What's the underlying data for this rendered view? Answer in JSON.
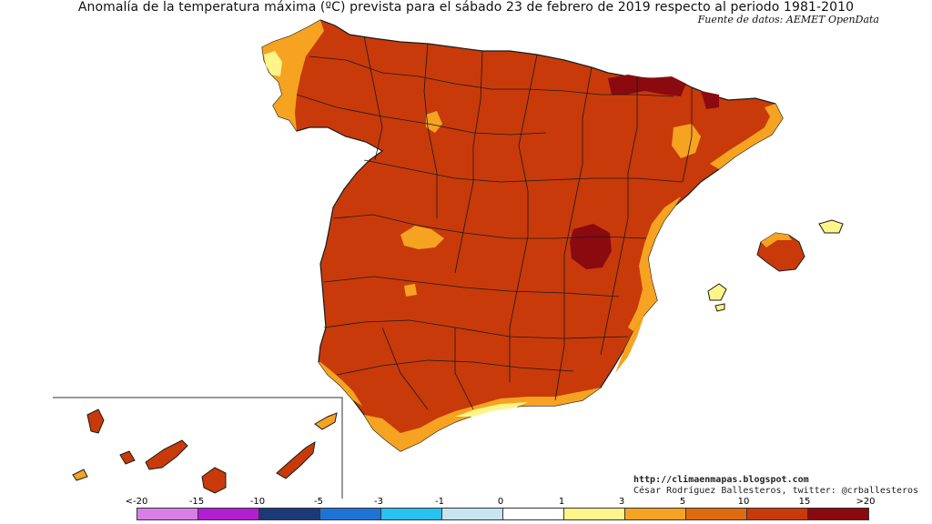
{
  "title": "Anomalía de la temperatura máxima (ºC) prevista para el sábado 23 de febrero de 2019 respecto al periodo 1981-2010",
  "source": "Fuente de datos: AEMET OpenData",
  "credits": {
    "blog": "http://climaenmapas.blogspot.com",
    "author": "César Rodríguez Ballesteros, twitter: @crballesteros"
  },
  "legend": {
    "ticks": [
      "<-20",
      "-15",
      "-10",
      "-5",
      "-3",
      "-1",
      "0",
      "1",
      "3",
      "5",
      "10",
      "15",
      ">20"
    ],
    "colors": [
      "#d97ee8",
      "#b21fd2",
      "#1c3a7a",
      "#1f73d6",
      "#29c1ef",
      "#c7e4f0",
      "#ffffff",
      "#fdf58a",
      "#f5a321",
      "#e06a10",
      "#c83a0a",
      "#8b0a10",
      "#6b3010"
    ]
  },
  "colors": {
    "dominant": "#c83a0a",
    "extreme": "#8b0a10",
    "moderate": "#f5a321",
    "mild": "#fdf58a",
    "border": "#1a1a1a"
  }
}
